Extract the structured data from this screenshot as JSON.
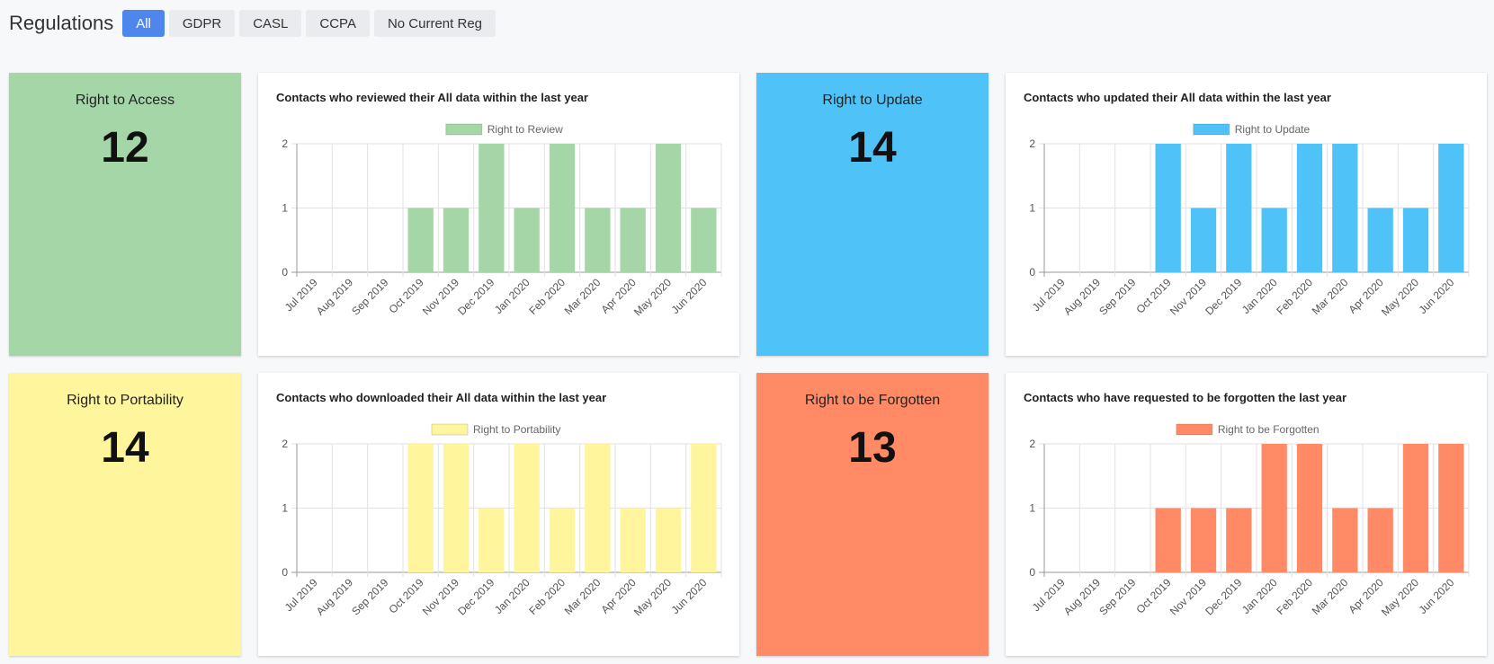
{
  "header": {
    "title": "Regulations",
    "filters": [
      "All",
      "GDPR",
      "CASL",
      "CCPA",
      "No Current Reg"
    ],
    "active_filter": "All"
  },
  "months": [
    "Jul 2019",
    "Aug 2019",
    "Sep 2019",
    "Oct 2019",
    "Nov 2019",
    "Dec 2019",
    "Jan 2020",
    "Feb 2020",
    "Mar 2020",
    "Apr 2020",
    "May 2020",
    "Jun 2020"
  ],
  "cards": {
    "access": {
      "label": "Right to Access",
      "value": "12",
      "color": "#a5d6a7"
    },
    "update": {
      "label": "Right to Update",
      "value": "14",
      "color": "#4fc3f7"
    },
    "portability": {
      "label": "Right to Portability",
      "value": "14",
      "color": "#fff59d"
    },
    "forgotten": {
      "label": "Right to be Forgotten",
      "value": "13",
      "color": "#ff8a65"
    }
  },
  "chart_data": [
    {
      "type": "bar",
      "title": "Contacts who reviewed their All data within the last year",
      "categories": [
        "Jul 2019",
        "Aug 2019",
        "Sep 2019",
        "Oct 2019",
        "Nov 2019",
        "Dec 2019",
        "Jan 2020",
        "Feb 2020",
        "Mar 2020",
        "Apr 2020",
        "May 2020",
        "Jun 2020"
      ],
      "series": [
        {
          "name": "Right to Review",
          "values": [
            0,
            0,
            0,
            1,
            1,
            2,
            1,
            2,
            1,
            1,
            2,
            1
          ],
          "color": "#a5d6a7"
        }
      ],
      "ylim": [
        0,
        2
      ],
      "yticks": [
        0,
        1,
        2
      ],
      "legend": "top-center",
      "grid": true
    },
    {
      "type": "bar",
      "title": "Contacts who updated their All data within the last year",
      "categories": [
        "Jul 2019",
        "Aug 2019",
        "Sep 2019",
        "Oct 2019",
        "Nov 2019",
        "Dec 2019",
        "Jan 2020",
        "Feb 2020",
        "Mar 2020",
        "Apr 2020",
        "May 2020",
        "Jun 2020"
      ],
      "series": [
        {
          "name": "Right to Update",
          "values": [
            0,
            0,
            0,
            2,
            1,
            2,
            1,
            2,
            2,
            1,
            1,
            2
          ],
          "color": "#4fc3f7"
        }
      ],
      "ylim": [
        0,
        2
      ],
      "yticks": [
        0,
        1,
        2
      ],
      "legend": "top-center",
      "grid": true
    },
    {
      "type": "bar",
      "title": "Contacts who downloaded their All data within the last year",
      "categories": [
        "Jul 2019",
        "Aug 2019",
        "Sep 2019",
        "Oct 2019",
        "Nov 2019",
        "Dec 2019",
        "Jan 2020",
        "Feb 2020",
        "Mar 2020",
        "Apr 2020",
        "May 2020",
        "Jun 2020"
      ],
      "series": [
        {
          "name": "Right to Portability",
          "values": [
            0,
            0,
            0,
            2,
            2,
            1,
            2,
            1,
            2,
            1,
            1,
            2
          ],
          "color": "#fff59d"
        }
      ],
      "ylim": [
        0,
        2
      ],
      "yticks": [
        0,
        1,
        2
      ],
      "legend": "top-center",
      "grid": true
    },
    {
      "type": "bar",
      "title": "Contacts who have requested to be forgotten the last year",
      "categories": [
        "Jul 2019",
        "Aug 2019",
        "Sep 2019",
        "Oct 2019",
        "Nov 2019",
        "Dec 2019",
        "Jan 2020",
        "Feb 2020",
        "Mar 2020",
        "Apr 2020",
        "May 2020",
        "Jun 2020"
      ],
      "series": [
        {
          "name": "Right to be Forgotten",
          "values": [
            0,
            0,
            0,
            1,
            1,
            1,
            2,
            2,
            1,
            1,
            2,
            2
          ],
          "color": "#ff8a65"
        }
      ],
      "ylim": [
        0,
        2
      ],
      "yticks": [
        0,
        1,
        2
      ],
      "legend": "top-center",
      "grid": true
    }
  ]
}
